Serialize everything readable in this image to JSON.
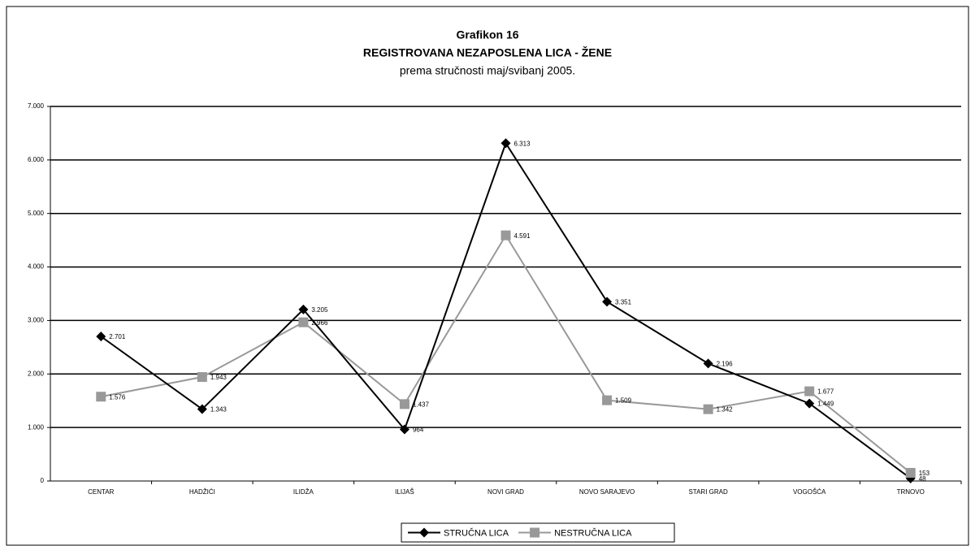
{
  "chart_data": {
    "type": "line",
    "title": "Grafikon 16",
    "subtitle": "REGISTROVANA NEZAPOSLENA LICA - ŽENE",
    "subtitle2": "prema stručnosti maj/svibanj 2005.",
    "categories": [
      "CENTAR",
      "HADŽIĆI",
      "ILIDŽA",
      "ILIJAŠ",
      "NOVI GRAD",
      "NOVO SARAJEVO",
      "STARI GRAD",
      "VOGOŠĆA",
      "TRNOVO"
    ],
    "series": [
      {
        "name": "STRUČNA LICA",
        "color": "#000000",
        "marker": "diamond",
        "values": [
          2701,
          1343,
          3205,
          964,
          6313,
          3351,
          2196,
          1449,
          48
        ],
        "value_labels": [
          "2.701",
          "1.343",
          "3.205",
          "964",
          "6.313",
          "3.351",
          "2.196",
          "1.449",
          "48"
        ]
      },
      {
        "name": "NESTRUČNA LICA",
        "color": "#999999",
        "marker": "square",
        "values": [
          1576,
          1943,
          2966,
          1437,
          4591,
          1509,
          1342,
          1677,
          153
        ],
        "value_labels": [
          "1.576",
          "1.943",
          "2.966",
          "1.437",
          "4.591",
          "1.509",
          "1.342",
          "1.677",
          "153"
        ]
      }
    ],
    "ylim": [
      0,
      7000
    ],
    "yticks": [
      0,
      {
        "value": 1000,
        "label": "1.000"
      },
      {
        "value": 2000,
        "label": "2.000"
      },
      {
        "value": 3000,
        "label": "3.000"
      },
      {
        "value": 4000,
        "label": "4.000"
      },
      {
        "value": 5000,
        "label": "5.000"
      },
      {
        "value": 6000,
        "label": "6.000"
      },
      {
        "value": 7000,
        "label": "7.000"
      }
    ],
    "grid": true,
    "legend": "bottom"
  }
}
